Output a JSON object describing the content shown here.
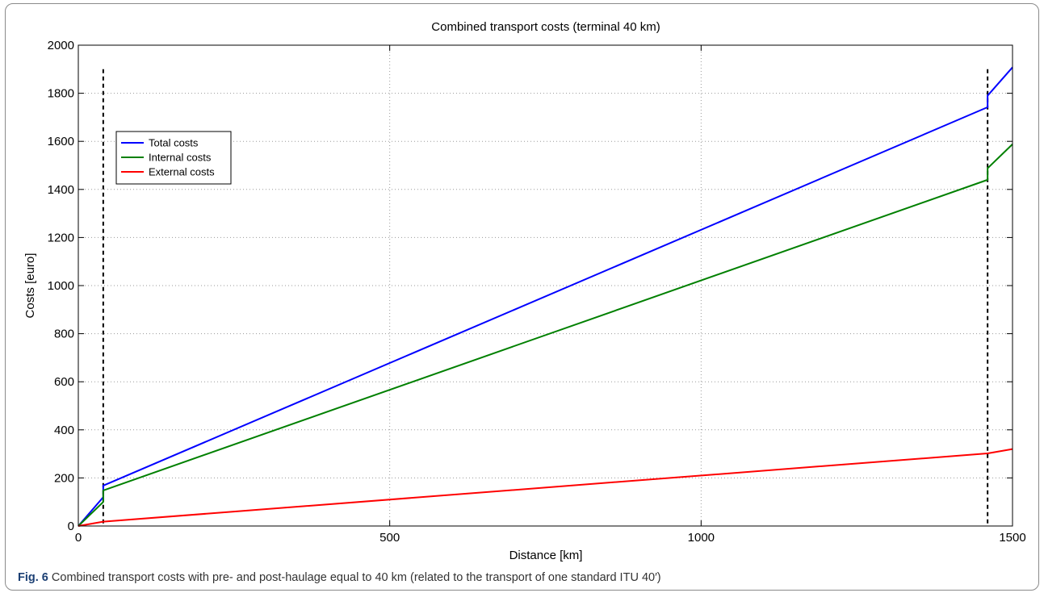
{
  "chart_data": {
    "type": "line",
    "title": "Combined transport costs (terminal 40 km)",
    "xlabel": "Distance [km]",
    "ylabel": "Costs [euro]",
    "xlim": [
      0,
      1500
    ],
    "ylim": [
      0,
      2000
    ],
    "xticks": [
      0,
      500,
      1000,
      1500
    ],
    "yticks": [
      0,
      200,
      400,
      600,
      800,
      1000,
      1200,
      1400,
      1600,
      1800,
      2000
    ],
    "grid": true,
    "legend_position": "upper-left",
    "vertical_markers": [
      40,
      1460
    ],
    "series": [
      {
        "name": "Total costs",
        "color": "#0000ff",
        "points": [
          [
            0,
            0
          ],
          [
            40,
            120
          ],
          [
            40,
            168
          ],
          [
            1460,
            1742
          ],
          [
            1460,
            1790
          ],
          [
            1500,
            1908
          ]
        ]
      },
      {
        "name": "Internal costs",
        "color": "#008000",
        "points": [
          [
            0,
            0
          ],
          [
            40,
            100
          ],
          [
            40,
            148
          ],
          [
            1460,
            1440
          ],
          [
            1460,
            1488
          ],
          [
            1500,
            1588
          ]
        ]
      },
      {
        "name": "External costs",
        "color": "#ff0000",
        "points": [
          [
            0,
            0
          ],
          [
            40,
            18
          ],
          [
            1460,
            302
          ],
          [
            1500,
            320
          ]
        ]
      }
    ]
  },
  "caption": {
    "label": "Fig. 6",
    "text": "Combined transport costs with pre- and post-haulage equal to 40 km (related to the transport of one standard ITU 40′)"
  }
}
